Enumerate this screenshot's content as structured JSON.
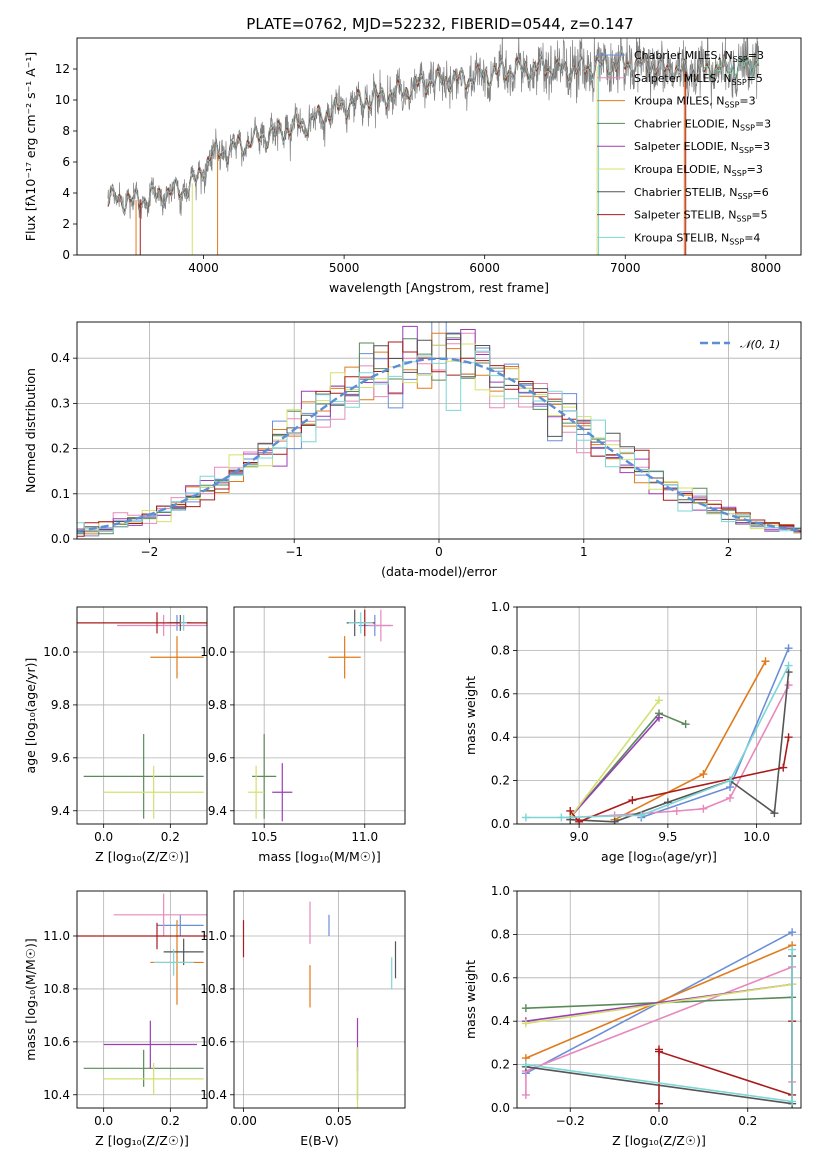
{
  "figure_title": "PLATE=0762, MJD=52232, FIBERID=0544, z=0.147",
  "series_colors": [
    "#6a8fd8",
    "#e07b1a",
    "#e889bc",
    "#5a8a5a",
    "#9b3fb5",
    "#d4e06e",
    "#555555",
    "#aa1c1c",
    "#7dd6d6"
  ],
  "chart_data": [
    {
      "type": "line",
      "xlabel": "wavelength [Angstrom, rest frame]",
      "ylabel": "Flux [fλ10⁻¹⁷ erg cm⁻² s⁻¹ A⁻¹]",
      "xlim": [
        3100,
        8250
      ],
      "ylim": [
        0,
        14
      ],
      "x_ticks": [
        4000,
        5000,
        6000,
        7000,
        8000
      ],
      "y_ticks": [
        0,
        2,
        4,
        6,
        8,
        10,
        12
      ],
      "grid": false,
      "legend_position": "upper-right",
      "legend": [
        {
          "name": "Chabrier MILES, N",
          "sub": "SSP",
          "tail": "=3",
          "color": "#6a8fd8"
        },
        {
          "name": "Salpeter MILES, N",
          "sub": "SSP",
          "tail": "=5",
          "color": "#e889bc"
        },
        {
          "name": "Kroupa MILES, N",
          "sub": "SSP",
          "tail": "=3",
          "color": "#e07b1a"
        },
        {
          "name": "Chabrier ELODIE, N",
          "sub": "SSP",
          "tail": "=3",
          "color": "#5a8a5a"
        },
        {
          "name": "Salpeter ELODIE, N",
          "sub": "SSP",
          "tail": "=3",
          "color": "#9b3fb5"
        },
        {
          "name": "Kroupa ELODIE, N",
          "sub": "SSP",
          "tail": "=3",
          "color": "#d4e06e"
        },
        {
          "name": "Chabrier STELIB, N",
          "sub": "SSP",
          "tail": "=6",
          "color": "#555555"
        },
        {
          "name": "Salpeter STELIB, N",
          "sub": "SSP",
          "tail": "=5",
          "color": "#aa1c1c"
        },
        {
          "name": "Kroupa STELIB, N",
          "sub": "SSP",
          "tail": "=4",
          "color": "#7dd6d6"
        }
      ],
      "continuum_points": [
        [
          3300,
          3.7
        ],
        [
          3500,
          3.5
        ],
        [
          3700,
          3.9
        ],
        [
          3850,
          4.2
        ],
        [
          3950,
          4.8
        ],
        [
          4050,
          6.4
        ],
        [
          4200,
          6.8
        ],
        [
          4400,
          7.6
        ],
        [
          4600,
          8.1
        ],
        [
          4800,
          8.8
        ],
        [
          5000,
          9.6
        ],
        [
          5200,
          10.1
        ],
        [
          5400,
          10.5
        ],
        [
          5600,
          11.2
        ],
        [
          5800,
          11.3
        ],
        [
          6000,
          11.6
        ],
        [
          6200,
          12.0
        ],
        [
          6400,
          12.1
        ],
        [
          6600,
          11.9
        ],
        [
          6800,
          12.2
        ],
        [
          7000,
          12.3
        ],
        [
          7200,
          12.2
        ],
        [
          7400,
          11.8
        ],
        [
          7600,
          12.0
        ],
        [
          7800,
          12.1
        ],
        [
          8000,
          12.5
        ]
      ],
      "model_dropouts": [
        [
          3520,
          "#e07b1a"
        ],
        [
          3550,
          "#aa1c1c"
        ],
        [
          3920,
          "#d4e06e"
        ],
        [
          4100,
          "#e07b1a"
        ],
        [
          6800,
          "#d4e06e"
        ],
        [
          6810,
          "#7dd6d6"
        ],
        [
          7420,
          "#e07b1a"
        ],
        [
          7430,
          "#aa1c1c"
        ]
      ]
    },
    {
      "type": "histogram",
      "xlabel": "(data-model)/error",
      "ylabel": "Normed distribution",
      "xlim": [
        -2.5,
        2.5
      ],
      "ylim": [
        0,
        0.48
      ],
      "x_ticks": [
        -2,
        -1,
        0,
        1,
        2
      ],
      "y_ticks": [
        0.0,
        0.1,
        0.2,
        0.3,
        0.4
      ],
      "grid": true,
      "legend_position": "upper-right",
      "reference_curve": {
        "name": "𝒩(0, 1)",
        "color": "#5b8ed6",
        "mu": 0,
        "sigma": 1
      },
      "bin_width": 0.1
    },
    {
      "type": "errorbar",
      "xlabel": "Z [log₁₀(Z/Z☉)]",
      "ylabel": "age [log₁₀(age/yr)]",
      "xlim": [
        -0.08,
        0.31
      ],
      "ylim": [
        9.35,
        10.17
      ],
      "x_ticks": [
        0.0,
        0.2
      ],
      "y_ticks": [
        9.4,
        9.6,
        9.8,
        10.0
      ],
      "grid": true,
      "points": [
        {
          "x": 0.22,
          "y": 10.11,
          "xerr": 0.03,
          "yerr": 0.03,
          "color": "#6a8fd8"
        },
        {
          "x": 0.22,
          "y": 9.98,
          "xerr": 0.08,
          "yerr": 0.08,
          "color": "#e07b1a"
        },
        {
          "x": 0.18,
          "y": 10.1,
          "xerr": 0.14,
          "yerr": 0.04,
          "color": "#e889bc"
        },
        {
          "x": 0.12,
          "y": 9.53,
          "xerr": 0.18,
          "yerr": 0.16,
          "color": "#5a8a5a"
        },
        {
          "x": 0.15,
          "y": 9.47,
          "xerr": 0.15,
          "yerr": 0.1,
          "color": "#d4e06e"
        },
        {
          "x": 0.23,
          "y": 10.11,
          "xerr": 0.03,
          "yerr": 0.03,
          "color": "#555555"
        },
        {
          "x": 0.16,
          "y": 10.11,
          "xerr": 0.27,
          "yerr": 0.04,
          "color": "#aa1c1c"
        },
        {
          "x": 0.24,
          "y": 10.11,
          "xerr": 0.01,
          "yerr": 0.03,
          "color": "#7dd6d6"
        }
      ]
    },
    {
      "type": "errorbar",
      "xlabel": "mass [log₁₀(M/M☉)]",
      "ylabel": "",
      "xlim": [
        10.35,
        11.2
      ],
      "ylim": [
        9.35,
        10.17
      ],
      "x_ticks": [
        10.5,
        11.0
      ],
      "y_ticks": [
        9.4,
        9.6,
        9.8,
        10.0
      ],
      "grid": true,
      "points": [
        {
          "x": 11.05,
          "y": 10.1,
          "xerr": 0.08,
          "yerr": 0.04,
          "color": "#6a8fd8"
        },
        {
          "x": 10.9,
          "y": 9.98,
          "xerr": 0.08,
          "yerr": 0.08,
          "color": "#e07b1a"
        },
        {
          "x": 11.08,
          "y": 10.1,
          "xerr": 0.06,
          "yerr": 0.06,
          "color": "#e889bc"
        },
        {
          "x": 10.5,
          "y": 9.53,
          "xerr": 0.06,
          "yerr": 0.16,
          "color": "#5a8a5a"
        },
        {
          "x": 10.59,
          "y": 9.47,
          "xerr": 0.05,
          "yerr": 0.11,
          "color": "#9b3fb5"
        },
        {
          "x": 10.46,
          "y": 9.47,
          "xerr": 0.04,
          "yerr": 0.1,
          "color": "#d4e06e"
        },
        {
          "x": 10.95,
          "y": 10.11,
          "xerr": 0.04,
          "yerr": 0.05,
          "color": "#555555"
        },
        {
          "x": 11.0,
          "y": 10.11,
          "xerr": 0.05,
          "yerr": 0.05,
          "color": "#aa1c1c"
        },
        {
          "x": 10.98,
          "y": 10.11,
          "xerr": 0.06,
          "yerr": 0.04,
          "color": "#7dd6d6"
        }
      ]
    },
    {
      "type": "line",
      "xlabel": "age [log₁₀(age/yr)]",
      "ylabel": "mass weight",
      "xlim": [
        8.65,
        10.25
      ],
      "ylim": [
        0,
        1.0
      ],
      "x_ticks": [
        9.0,
        9.5,
        10.0
      ],
      "y_ticks": [
        0.0,
        0.2,
        0.4,
        0.6,
        0.8,
        1.0
      ],
      "grid": true,
      "series": [
        {
          "color": "#6a8fd8",
          "x": [
            9.35,
            9.85,
            10.18
          ],
          "y": [
            0.03,
            0.17,
            0.81
          ]
        },
        {
          "color": "#e07b1a",
          "x": [
            9.2,
            9.7,
            10.05
          ],
          "y": [
            0.02,
            0.23,
            0.75
          ]
        },
        {
          "color": "#e889bc",
          "x": [
            8.95,
            9.2,
            9.55,
            9.7,
            9.85,
            10.18
          ],
          "y": [
            0.03,
            0.04,
            0.06,
            0.07,
            0.12,
            0.64
          ]
        },
        {
          "color": "#5a8a5a",
          "x": [
            8.95,
            9.45,
            9.6
          ],
          "y": [
            0.03,
            0.51,
            0.46
          ]
        },
        {
          "color": "#9b3fb5",
          "x": [
            8.95,
            9.45
          ],
          "y": [
            0.03,
            0.49
          ]
        },
        {
          "color": "#d4e06e",
          "x": [
            8.95,
            9.45
          ],
          "y": [
            0.03,
            0.57
          ]
        },
        {
          "color": "#555555",
          "x": [
            8.95,
            9.2,
            9.5,
            9.85,
            10.1,
            10.18
          ],
          "y": [
            0.02,
            0.01,
            0.1,
            0.2,
            0.05,
            0.7
          ]
        },
        {
          "color": "#aa1c1c",
          "x": [
            8.95,
            9.0,
            9.3,
            10.15,
            10.18
          ],
          "y": [
            0.06,
            0.01,
            0.11,
            0.26,
            0.4
          ]
        },
        {
          "color": "#7dd6d6",
          "x": [
            8.7,
            8.9,
            9.35,
            9.85,
            10.18
          ],
          "y": [
            0.03,
            0.03,
            0.04,
            0.2,
            0.73
          ]
        }
      ]
    },
    {
      "type": "errorbar",
      "xlabel": "Z [log₁₀(Z/Z☉)]",
      "ylabel": "mass [log₁₀(M/M☉)]",
      "xlim": [
        -0.08,
        0.31
      ],
      "ylim": [
        10.35,
        11.17
      ],
      "x_ticks": [
        0.0,
        0.2
      ],
      "y_ticks": [
        10.4,
        10.6,
        10.8,
        11.0
      ],
      "grid": true,
      "points": [
        {
          "x": 0.23,
          "y": 11.04,
          "xerr": 0.07,
          "yerr": 0.04,
          "color": "#6a8fd8"
        },
        {
          "x": 0.22,
          "y": 10.9,
          "xerr": 0.08,
          "yerr": 0.16,
          "color": "#e07b1a"
        },
        {
          "x": 0.18,
          "y": 11.08,
          "xerr": 0.15,
          "yerr": 0.08,
          "color": "#e889bc"
        },
        {
          "x": 0.12,
          "y": 10.5,
          "xerr": 0.18,
          "yerr": 0.07,
          "color": "#5a8a5a"
        },
        {
          "x": 0.14,
          "y": 10.59,
          "xerr": 0.14,
          "yerr": 0.09,
          "color": "#9b3fb5"
        },
        {
          "x": 0.15,
          "y": 10.46,
          "xerr": 0.15,
          "yerr": 0.06,
          "color": "#d4e06e"
        },
        {
          "x": 0.24,
          "y": 10.94,
          "xerr": 0.06,
          "yerr": 0.05,
          "color": "#555555"
        },
        {
          "x": 0.16,
          "y": 11.0,
          "xerr": 0.28,
          "yerr": 0.05,
          "color": "#aa1c1c"
        },
        {
          "x": 0.21,
          "y": 10.9,
          "xerr": 0.06,
          "yerr": 0.05,
          "color": "#7dd6d6"
        }
      ]
    },
    {
      "type": "errorbar",
      "xlabel": "E(B-V)",
      "ylabel": "",
      "xlim": [
        -0.005,
        0.085
      ],
      "ylim": [
        10.35,
        11.17
      ],
      "x_ticks": [
        0.0,
        0.05
      ],
      "y_ticks": [
        10.4,
        10.6,
        10.8,
        11.0
      ],
      "grid": true,
      "points": [
        {
          "x": 0.045,
          "y": 11.04,
          "xerr": 0,
          "yerr": 0.04,
          "color": "#6a8fd8"
        },
        {
          "x": 0.035,
          "y": 10.81,
          "xerr": 0,
          "yerr": 0.08,
          "color": "#e07b1a"
        },
        {
          "x": 0.035,
          "y": 11.05,
          "xerr": 0,
          "yerr": 0.08,
          "color": "#e889bc"
        },
        {
          "x": 0.06,
          "y": 10.48,
          "xerr": 0,
          "yerr": 0.1,
          "color": "#5a8a5a"
        },
        {
          "x": 0.06,
          "y": 10.59,
          "xerr": 0,
          "yerr": 0.1,
          "color": "#9b3fb5"
        },
        {
          "x": 0.06,
          "y": 10.46,
          "xerr": 0,
          "yerr": 0.12,
          "color": "#d4e06e"
        },
        {
          "x": 0.08,
          "y": 10.91,
          "xerr": 0,
          "yerr": 0.07,
          "color": "#555555"
        },
        {
          "x": 0.0,
          "y": 10.99,
          "xerr": 0,
          "yerr": 0.07,
          "color": "#aa1c1c"
        },
        {
          "x": 0.078,
          "y": 10.86,
          "xerr": 0,
          "yerr": 0.06,
          "color": "#7dd6d6"
        }
      ]
    },
    {
      "type": "line",
      "xlabel": "Z [log₁₀(Z/Z☉)]",
      "ylabel": "mass weight",
      "xlim": [
        -0.32,
        0.32
      ],
      "ylim": [
        0,
        1.0
      ],
      "x_ticks": [
        -0.2,
        0.0,
        0.2
      ],
      "y_ticks": [
        0.0,
        0.2,
        0.4,
        0.6,
        0.8,
        1.0
      ],
      "grid": true,
      "series": [
        {
          "color": "#6a8fd8",
          "x": [
            -0.3,
            0.3
          ],
          "y": [
            0.16,
            0.81
          ]
        },
        {
          "color": "#e07b1a",
          "x": [
            -0.3,
            0.3
          ],
          "y": [
            0.23,
            0.75
          ]
        },
        {
          "color": "#e889bc",
          "x": [
            -0.3,
            -0.3,
            0.3,
            0.3
          ],
          "y": [
            0.06,
            0.17,
            0.65,
            0.12
          ]
        },
        {
          "color": "#5a8a5a",
          "x": [
            -0.3,
            0.3
          ],
          "y": [
            0.46,
            0.51
          ]
        },
        {
          "color": "#9b3fb5",
          "x": [
            -0.3,
            0.3
          ],
          "y": [
            0.4,
            0.57
          ]
        },
        {
          "color": "#d4e06e",
          "x": [
            -0.3,
            0.3
          ],
          "y": [
            0.39,
            0.57
          ]
        },
        {
          "color": "#555555",
          "x": [
            -0.3,
            0.3,
            0.3
          ],
          "y": [
            0.19,
            0.02,
            0.7
          ]
        },
        {
          "color": "#aa1c1c",
          "x": [
            0.0,
            0.0,
            0.0,
            0.3,
            0.3
          ],
          "y": [
            0.02,
            0.27,
            0.26,
            0.06,
            0.4
          ]
        },
        {
          "color": "#7dd6d6",
          "x": [
            -0.3,
            0.3,
            0.3
          ],
          "y": [
            0.2,
            0.03,
            0.73
          ]
        }
      ]
    }
  ]
}
